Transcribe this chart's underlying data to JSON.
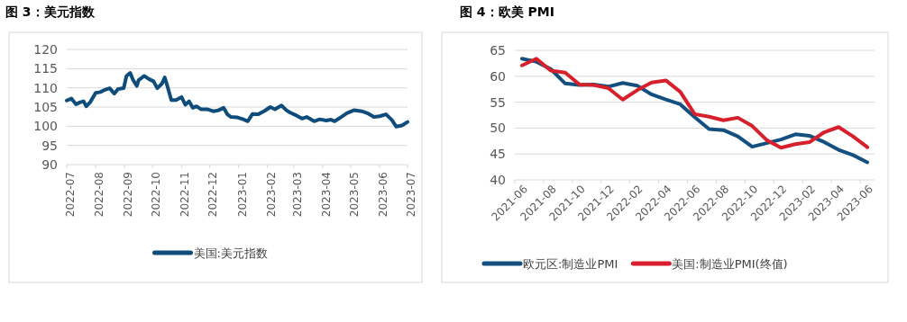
{
  "chart_data": [
    {
      "type": "line",
      "title": "图 3：美元指数",
      "grid": "y",
      "legend": "bottom",
      "xlim": [
        "2022-07-01",
        "2023-07-01"
      ],
      "xticks": [
        {
          "value": "2022-07-01",
          "label": "2022-07"
        },
        {
          "value": "2022-08-01",
          "label": "2022-08"
        },
        {
          "value": "2022-09-01",
          "label": "2022-09"
        },
        {
          "value": "2022-10-01",
          "label": "2022-10"
        },
        {
          "value": "2022-11-01",
          "label": "2022-11"
        },
        {
          "value": "2022-12-01",
          "label": "2022-12"
        },
        {
          "value": "2023-01-01",
          "label": "2023-01"
        },
        {
          "value": "2023-02-01",
          "label": "2023-02"
        },
        {
          "value": "2023-03-01",
          "label": "2023-03"
        },
        {
          "value": "2023-04-01",
          "label": "2023-04"
        },
        {
          "value": "2023-05-01",
          "label": "2023-05"
        },
        {
          "value": "2023-06-01",
          "label": "2023-06"
        },
        {
          "value": "2023-07-01",
          "label": "2023-07"
        }
      ],
      "ylim": [
        90,
        120
      ],
      "yticks": [
        90,
        95,
        100,
        105,
        110,
        115,
        120
      ],
      "x": [
        "2022-07-01",
        "2022-07-06",
        "2022-07-11",
        "2022-07-15",
        "2022-07-19",
        "2022-07-22",
        "2022-07-26",
        "2022-08-01",
        "2022-08-06",
        "2022-08-11",
        "2022-08-16",
        "2022-08-21",
        "2022-08-25",
        "2022-08-31",
        "2022-09-03",
        "2022-09-07",
        "2022-09-10",
        "2022-09-14",
        "2022-09-16",
        "2022-09-22",
        "2022-09-27",
        "2022-10-02",
        "2022-10-06",
        "2022-10-11",
        "2022-10-14",
        "2022-10-17",
        "2022-10-21",
        "2022-10-26",
        "2022-11-01",
        "2022-11-05",
        "2022-11-09",
        "2022-11-13",
        "2022-11-17",
        "2022-11-22",
        "2022-11-29",
        "2022-12-05",
        "2022-12-10",
        "2022-12-16",
        "2022-12-20",
        "2022-12-24",
        "2022-12-31",
        "2023-01-06",
        "2023-01-11",
        "2023-01-16",
        "2023-01-22",
        "2023-01-29",
        "2023-02-04",
        "2023-02-09",
        "2023-02-16",
        "2023-02-21",
        "2023-02-25",
        "2023-03-04",
        "2023-03-10",
        "2023-03-15",
        "2023-03-23",
        "2023-03-29",
        "2023-04-05",
        "2023-04-10",
        "2023-04-14",
        "2023-04-21",
        "2023-04-27",
        "2023-05-05",
        "2023-05-13",
        "2023-05-19",
        "2023-05-26",
        "2023-06-01",
        "2023-06-08",
        "2023-06-14",
        "2023-06-19",
        "2023-06-25",
        "2023-07-01"
      ],
      "series": [
        {
          "name": "美国:美元指数",
          "color": "#0e4d7b",
          "values": [
            106.7,
            107.2,
            105.7,
            106.2,
            106.5,
            105.2,
            106.2,
            108.7,
            108.9,
            109.5,
            109.9,
            108.5,
            109.7,
            109.9,
            113.1,
            113.9,
            112.1,
            110.5,
            112.0,
            113.1,
            112.3,
            111.7,
            109.9,
            111.1,
            112.7,
            110.3,
            106.8,
            106.8,
            107.6,
            105.6,
            106.5,
            104.8,
            105.2,
            104.4,
            104.4,
            103.9,
            104.1,
            104.8,
            103.1,
            102.4,
            102.3,
            101.8,
            101.3,
            103.2,
            103.1,
            104.0,
            105.0,
            104.4,
            105.4,
            104.2,
            103.6,
            102.8,
            102.0,
            102.4,
            101.3,
            101.8,
            101.5,
            101.7,
            101.3,
            102.4,
            103.4,
            104.2,
            103.9,
            103.4,
            102.4,
            102.6,
            103.1,
            101.7,
            99.9,
            100.2,
            101.1
          ]
        }
      ]
    },
    {
      "type": "line",
      "title": "图 4：欧美 PMI",
      "grid": "y",
      "legend": "bottom",
      "categories": [
        "2021-06",
        null,
        "2021-08",
        null,
        "2021-10",
        null,
        "2021-12",
        null,
        "2022-02",
        null,
        "2022-04",
        null,
        "2022-06",
        null,
        "2022-08",
        null,
        "2022-10",
        null,
        "2022-12",
        null,
        "2023-02",
        null,
        "2023-04",
        null,
        "2023-06"
      ],
      "ylim": [
        40,
        65
      ],
      "yticks": [
        40,
        45,
        50,
        55,
        60,
        65
      ],
      "series": [
        {
          "name": "欧元区:制造业PMI",
          "color": "#14507f",
          "values": [
            63.4,
            62.8,
            61.4,
            58.6,
            58.3,
            58.4,
            58.0,
            58.7,
            58.2,
            56.5,
            55.5,
            54.6,
            52.1,
            49.8,
            49.6,
            48.4,
            46.4,
            47.1,
            47.8,
            48.8,
            48.5,
            47.3,
            45.8,
            44.8,
            43.4
          ]
        },
        {
          "name": "美国:制造业PMI(终值)",
          "color": "#d7202b",
          "values": [
            62.1,
            63.4,
            61.1,
            60.7,
            58.4,
            58.3,
            57.7,
            55.5,
            57.3,
            58.8,
            59.2,
            57.0,
            52.7,
            52.2,
            51.5,
            52.0,
            50.4,
            47.7,
            46.2,
            46.9,
            47.3,
            49.2,
            50.2,
            48.4,
            46.3
          ]
        }
      ]
    }
  ]
}
